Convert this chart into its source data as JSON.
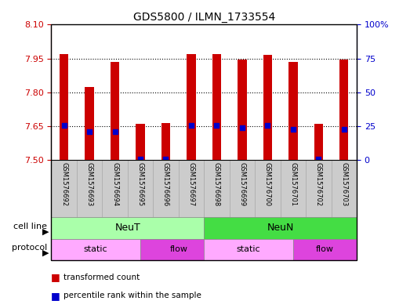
{
  "title": "GDS5800 / ILMN_1733554",
  "samples": [
    "GSM1576692",
    "GSM1576693",
    "GSM1576694",
    "GSM1576695",
    "GSM1576696",
    "GSM1576697",
    "GSM1576698",
    "GSM1576699",
    "GSM1576700",
    "GSM1576701",
    "GSM1576702",
    "GSM1576703"
  ],
  "bar_values": [
    7.97,
    7.825,
    7.935,
    7.66,
    7.665,
    7.97,
    7.97,
    7.945,
    7.965,
    7.935,
    7.66,
    7.945
  ],
  "percentile_values": [
    7.655,
    7.625,
    7.625,
    7.505,
    7.505,
    7.655,
    7.655,
    7.645,
    7.655,
    7.635,
    7.505,
    7.635
  ],
  "bar_base": 7.5,
  "ylim_left": [
    7.5,
    8.1
  ],
  "ylim_right": [
    0,
    100
  ],
  "yticks_left": [
    7.5,
    7.65,
    7.8,
    7.95,
    8.1
  ],
  "yticks_right": [
    0,
    25,
    50,
    75,
    100
  ],
  "ytick_labels_right": [
    "0",
    "25",
    "50",
    "75",
    "100%"
  ],
  "bar_color": "#cc0000",
  "percentile_color": "#0000cc",
  "grid_color": "#000000",
  "cell_line_NeuT_color": "#aaffaa",
  "cell_line_NeuN_color": "#44dd44",
  "protocol_static_color": "#ffaaff",
  "protocol_flow_color": "#dd44dd",
  "xlabel_color": "#cc0000",
  "right_axis_color": "#0000cc",
  "background_label": "#cccccc"
}
